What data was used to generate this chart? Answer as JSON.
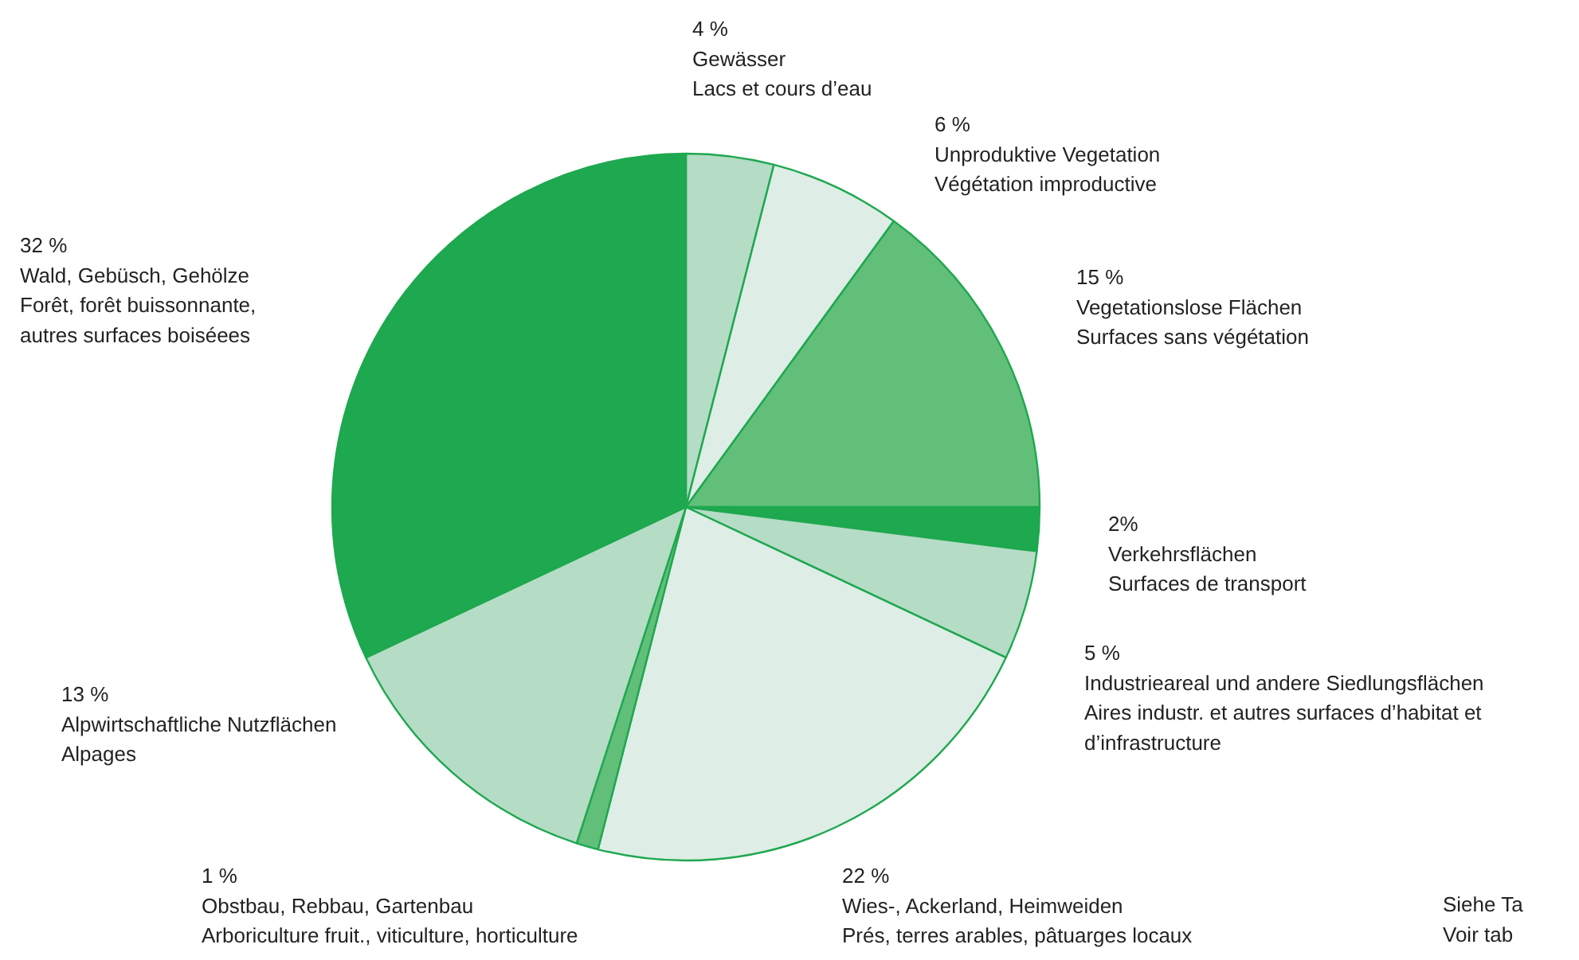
{
  "chart_data": {
    "type": "pie",
    "categories": [
      "Gewässer\nLacs et cours d’eau",
      "Unproduktive Vegetation\nVégétation improductive",
      "Vegetationslose Flächen\nSurfaces sans végétation",
      "Verkehrsflächen\nSurfaces de transport",
      "Industrieareal und andere Siedlungsflächen\nAires industr. et autres surfaces d’habitat et\nd’infrastructure",
      "Wies-, Ackerland, Heimweiden\nPrés, terres arables, pâtuarges locaux",
      "Obstbau, Rebbau, Gartenbau\nArboriculture fruit., viticulture, horticulture",
      "Alpwirtschaftliche Nutzflächen\nAlpages",
      "Wald, Gebüsch, Gehölze\nForêt, forêt buissonnante,\nautres surfaces boiséees"
    ],
    "values": [
      4,
      6,
      15,
      2,
      5,
      22,
      1,
      13,
      32
    ],
    "value_labels": [
      "4 %",
      "6 %",
      "15 %",
      "2%",
      "5 %",
      "22 %",
      "1 %",
      "13 %",
      "32 %"
    ],
    "colors": [
      "#b5dcc5",
      "#deede6",
      "#62bf7a",
      "#1ea84f",
      "#b5dcc5",
      "#deede6",
      "#62bf7a",
      "#b5dcc5",
      "#1ea84f"
    ],
    "annotations": [
      "Siehe Ta\nVoir tab"
    ]
  }
}
